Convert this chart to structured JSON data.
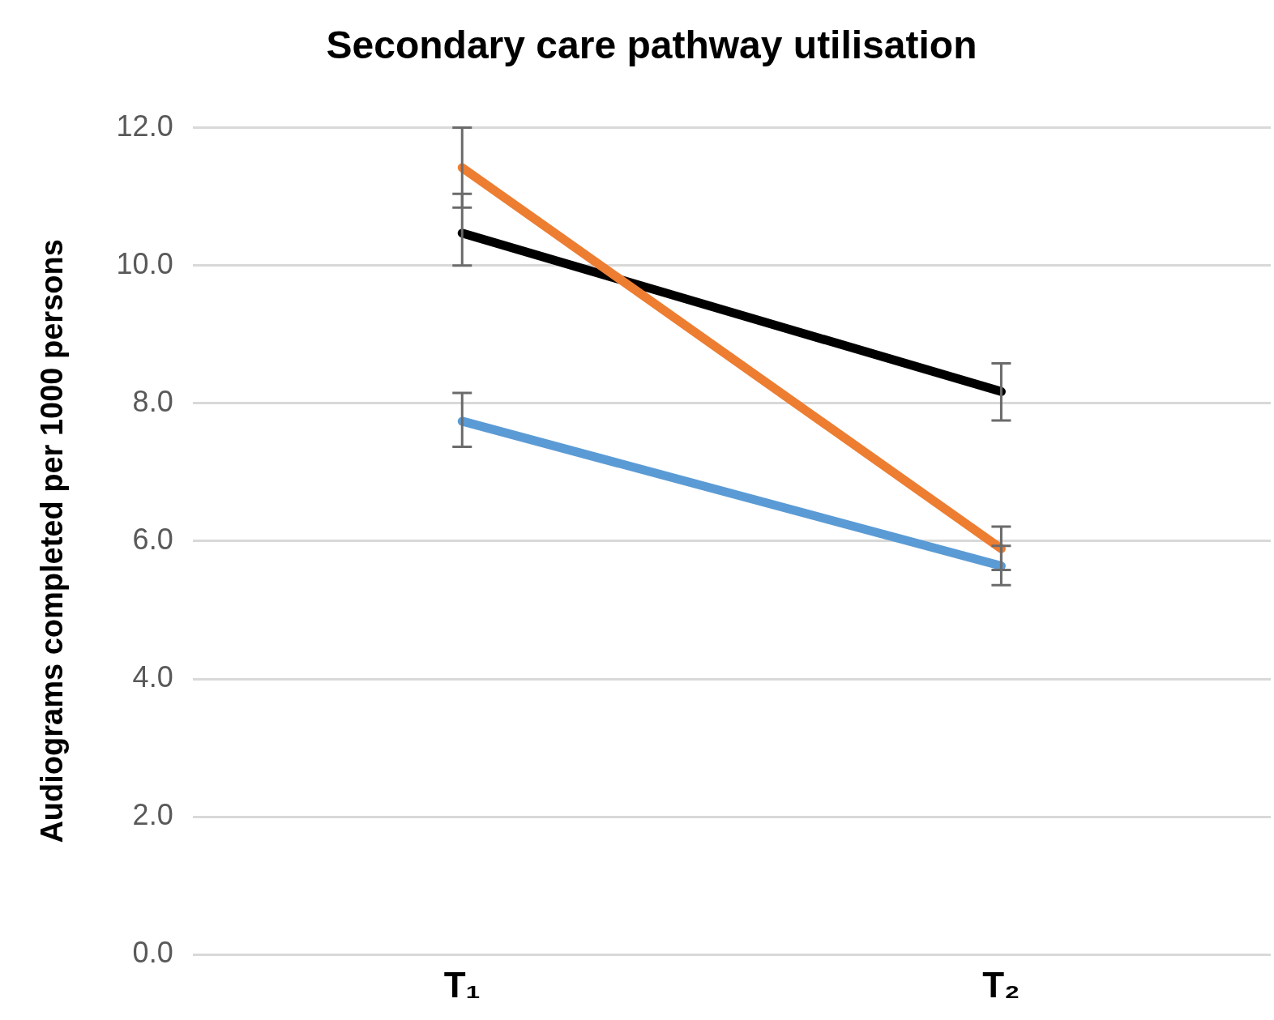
{
  "chart_data": {
    "type": "line",
    "title": "Secondary care pathway utilisation",
    "ylabel": "Audiograms completed per 1000 persons",
    "categories": [
      "T₁",
      "T₂"
    ],
    "series": [
      {
        "color": "#ed7d31",
        "values": [
          11.42,
          5.89
        ],
        "errors": [
          [
            10.84,
            12.0
          ],
          [
            5.58,
            6.21
          ]
        ]
      },
      {
        "color": "#000000",
        "values": [
          10.47,
          8.17
        ],
        "errors": [
          [
            10.0,
            11.04
          ],
          [
            7.75,
            8.58
          ]
        ]
      },
      {
        "color": "#5b9bd5",
        "values": [
          7.74,
          5.64
        ],
        "errors": [
          [
            7.37,
            8.15
          ],
          [
            5.36,
            5.93
          ]
        ]
      }
    ],
    "ylim": [
      0,
      12
    ],
    "yticks": [
      {
        "value": 0,
        "label": "0.0"
      },
      {
        "value": 2,
        "label": "2.0"
      },
      {
        "value": 4,
        "label": "4.0"
      },
      {
        "value": 6,
        "label": "6.0"
      },
      {
        "value": 8,
        "label": "8.0"
      },
      {
        "value": 10,
        "label": "10.0"
      },
      {
        "value": 12,
        "label": "12.0"
      }
    ],
    "grid": "y",
    "legend": false,
    "marker": "none",
    "line_style": "solid"
  }
}
